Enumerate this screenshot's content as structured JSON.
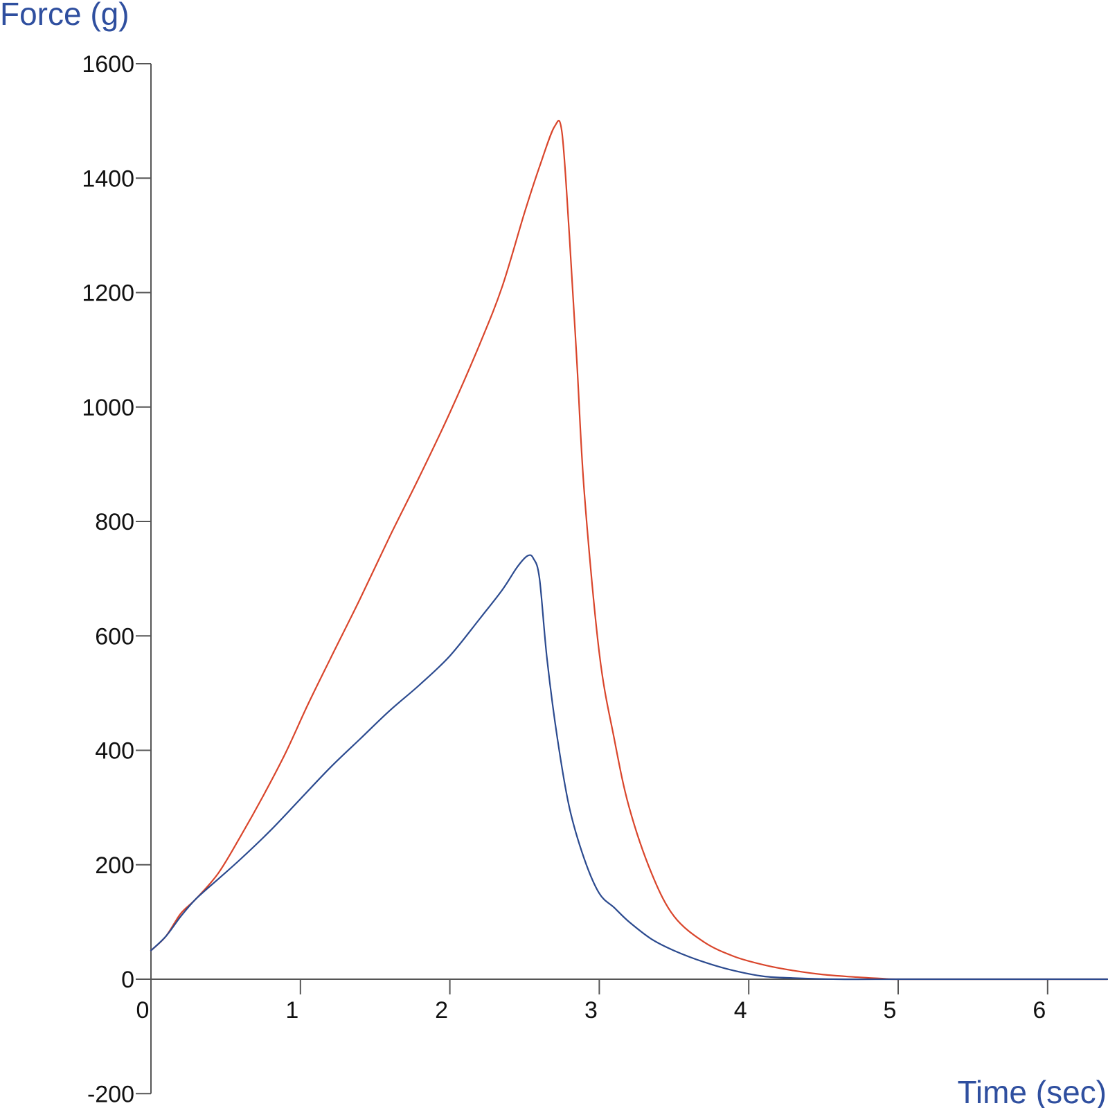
{
  "chart_data": {
    "type": "line",
    "title": "",
    "xlabel": "Time (sec)",
    "ylabel": "Force (g)",
    "xlim": [
      0,
      6.4
    ],
    "ylim": [
      -200,
      1600
    ],
    "x_ticks": [
      "0",
      "1",
      "2",
      "3",
      "4",
      "5",
      "6"
    ],
    "y_ticks": [
      "-200",
      "0",
      "200",
      "400",
      "600",
      "800",
      "1000",
      "1200",
      "1400",
      "1600"
    ],
    "grid": false,
    "legend": "none",
    "series": [
      {
        "color": "#d9452b",
        "x": [
          0,
          0.1,
          0.2,
          0.3,
          0.45,
          0.6,
          0.75,
          0.9,
          1.05,
          1.2,
          1.4,
          1.6,
          1.8,
          2.0,
          2.2,
          2.35,
          2.5,
          2.6,
          2.7,
          2.75,
          2.8,
          2.85,
          2.9,
          3.0,
          3.1,
          3.2,
          3.35,
          3.5,
          3.7,
          3.9,
          4.1,
          4.3,
          4.5,
          4.7,
          4.9,
          5.0,
          5.5,
          6.0,
          6.4
        ],
        "y": [
          50,
          75,
          115,
          140,
          185,
          250,
          320,
          395,
          480,
          560,
          665,
          775,
          880,
          990,
          1110,
          1210,
          1340,
          1420,
          1490,
          1480,
          1300,
          1080,
          850,
          570,
          420,
          300,
          185,
          110,
          65,
          40,
          25,
          15,
          8,
          4,
          1,
          0,
          0,
          0,
          0
        ]
      },
      {
        "color": "#2b4a8f",
        "x": [
          0,
          0.1,
          0.2,
          0.3,
          0.45,
          0.6,
          0.8,
          1.0,
          1.2,
          1.4,
          1.6,
          1.8,
          2.0,
          2.2,
          2.35,
          2.45,
          2.52,
          2.56,
          2.6,
          2.65,
          2.72,
          2.8,
          2.9,
          3.0,
          3.1,
          3.2,
          3.35,
          3.5,
          3.7,
          3.9,
          4.1,
          4.3,
          4.6,
          5.0,
          5.5,
          6.0,
          6.4
        ],
        "y": [
          50,
          75,
          110,
          140,
          175,
          210,
          260,
          315,
          370,
          420,
          470,
          515,
          565,
          630,
          680,
          720,
          740,
          735,
          700,
          560,
          420,
          300,
          210,
          150,
          125,
          100,
          70,
          50,
          30,
          15,
          5,
          2,
          0,
          0,
          0,
          0,
          0
        ]
      }
    ]
  }
}
